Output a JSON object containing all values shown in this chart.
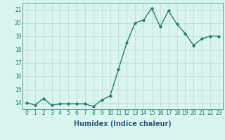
{
  "x": [
    0,
    1,
    2,
    3,
    4,
    5,
    6,
    7,
    8,
    9,
    10,
    11,
    12,
    13,
    14,
    15,
    16,
    17,
    18,
    19,
    20,
    21,
    22,
    23
  ],
  "y": [
    14.0,
    13.8,
    14.3,
    13.8,
    13.9,
    13.9,
    13.9,
    13.9,
    13.7,
    14.2,
    14.5,
    16.5,
    18.5,
    20.0,
    20.2,
    21.1,
    19.7,
    20.9,
    19.9,
    19.2,
    18.3,
    18.8,
    19.0,
    19.0
  ],
  "line_color": "#2d7d6e",
  "marker": "D",
  "marker_size": 1.8,
  "bg_color": "#d8f5f0",
  "grid_color": "#c0d8d4",
  "xlabel": "Humidex (Indice chaleur)",
  "xlabel_fontsize": 7,
  "xlabel_color": "#2d5c7a",
  "tick_color": "#2d7d6e",
  "ylim": [
    13.5,
    21.5
  ],
  "xlim": [
    -0.5,
    23.5
  ],
  "yticks": [
    14,
    15,
    16,
    17,
    18,
    19,
    20,
    21
  ],
  "xticks": [
    0,
    1,
    2,
    3,
    4,
    5,
    6,
    7,
    8,
    9,
    10,
    11,
    12,
    13,
    14,
    15,
    16,
    17,
    18,
    19,
    20,
    21,
    22,
    23
  ],
  "tick_fontsize": 5.5,
  "line_width": 1.0
}
